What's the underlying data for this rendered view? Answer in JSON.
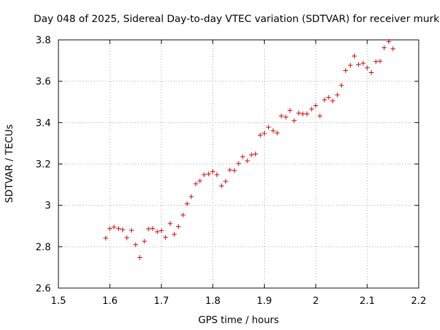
{
  "chart_data": {
    "type": "scatter",
    "title": "Day 048 of 2025, Sidereal Day-to-day VTEC variation (SDTVAR) for receiver murk",
    "xlabel": "GPS time / hours",
    "ylabel": "SDTVAR / TECUs",
    "xlim": [
      1.5,
      2.2
    ],
    "ylim": [
      2.6,
      3.8
    ],
    "x_ticks": [
      1.5,
      1.6,
      1.7,
      1.8,
      1.9,
      2.0,
      2.1,
      2.2
    ],
    "x_tick_labels": [
      "1.5",
      "1.6",
      "1.7",
      "1.8",
      "1.9",
      "2",
      "2.1",
      "2.2"
    ],
    "y_ticks": [
      2.6,
      2.8,
      3.0,
      3.2,
      3.4,
      3.6,
      3.8
    ],
    "y_tick_labels": [
      "2.6",
      "2.8",
      "3",
      "3.2",
      "3.4",
      "3.6",
      "3.8"
    ],
    "grid": true,
    "marker": "+",
    "color": "#cc0000",
    "series": [
      {
        "name": "SDTVAR",
        "points": [
          [
            1.592,
            2.842
          ],
          [
            1.6,
            2.887
          ],
          [
            1.608,
            2.895
          ],
          [
            1.617,
            2.887
          ],
          [
            1.625,
            2.882
          ],
          [
            1.633,
            2.843
          ],
          [
            1.642,
            2.879
          ],
          [
            1.65,
            2.81
          ],
          [
            1.658,
            2.748
          ],
          [
            1.667,
            2.826
          ],
          [
            1.675,
            2.886
          ],
          [
            1.683,
            2.888
          ],
          [
            1.692,
            2.872
          ],
          [
            1.7,
            2.878
          ],
          [
            1.708,
            2.845
          ],
          [
            1.717,
            2.912
          ],
          [
            1.725,
            2.86
          ],
          [
            1.733,
            2.897
          ],
          [
            1.742,
            2.953
          ],
          [
            1.75,
            3.007
          ],
          [
            1.758,
            3.042
          ],
          [
            1.767,
            3.104
          ],
          [
            1.775,
            3.118
          ],
          [
            1.783,
            3.148
          ],
          [
            1.792,
            3.152
          ],
          [
            1.8,
            3.163
          ],
          [
            1.808,
            3.148
          ],
          [
            1.817,
            3.094
          ],
          [
            1.825,
            3.116
          ],
          [
            1.833,
            3.171
          ],
          [
            1.842,
            3.168
          ],
          [
            1.85,
            3.202
          ],
          [
            1.858,
            3.235
          ],
          [
            1.867,
            3.215
          ],
          [
            1.875,
            3.244
          ],
          [
            1.883,
            3.248
          ],
          [
            1.892,
            3.339
          ],
          [
            1.9,
            3.348
          ],
          [
            1.908,
            3.378
          ],
          [
            1.917,
            3.361
          ],
          [
            1.925,
            3.35
          ],
          [
            1.933,
            3.432
          ],
          [
            1.942,
            3.427
          ],
          [
            1.95,
            3.459
          ],
          [
            1.958,
            3.409
          ],
          [
            1.967,
            3.446
          ],
          [
            1.975,
            3.442
          ],
          [
            1.983,
            3.442
          ],
          [
            1.992,
            3.465
          ],
          [
            2.0,
            3.482
          ],
          [
            2.008,
            3.432
          ],
          [
            2.017,
            3.51
          ],
          [
            2.025,
            3.522
          ],
          [
            2.033,
            3.505
          ],
          [
            2.042,
            3.534
          ],
          [
            2.05,
            3.58
          ],
          [
            2.058,
            3.652
          ],
          [
            2.067,
            3.677
          ],
          [
            2.075,
            3.722
          ],
          [
            2.083,
            3.681
          ],
          [
            2.092,
            3.687
          ],
          [
            2.1,
            3.665
          ],
          [
            2.108,
            3.642
          ],
          [
            2.117,
            3.695
          ],
          [
            2.125,
            3.697
          ],
          [
            2.133,
            3.762
          ],
          [
            2.142,
            3.792
          ],
          [
            2.15,
            3.757
          ]
        ]
      }
    ]
  }
}
